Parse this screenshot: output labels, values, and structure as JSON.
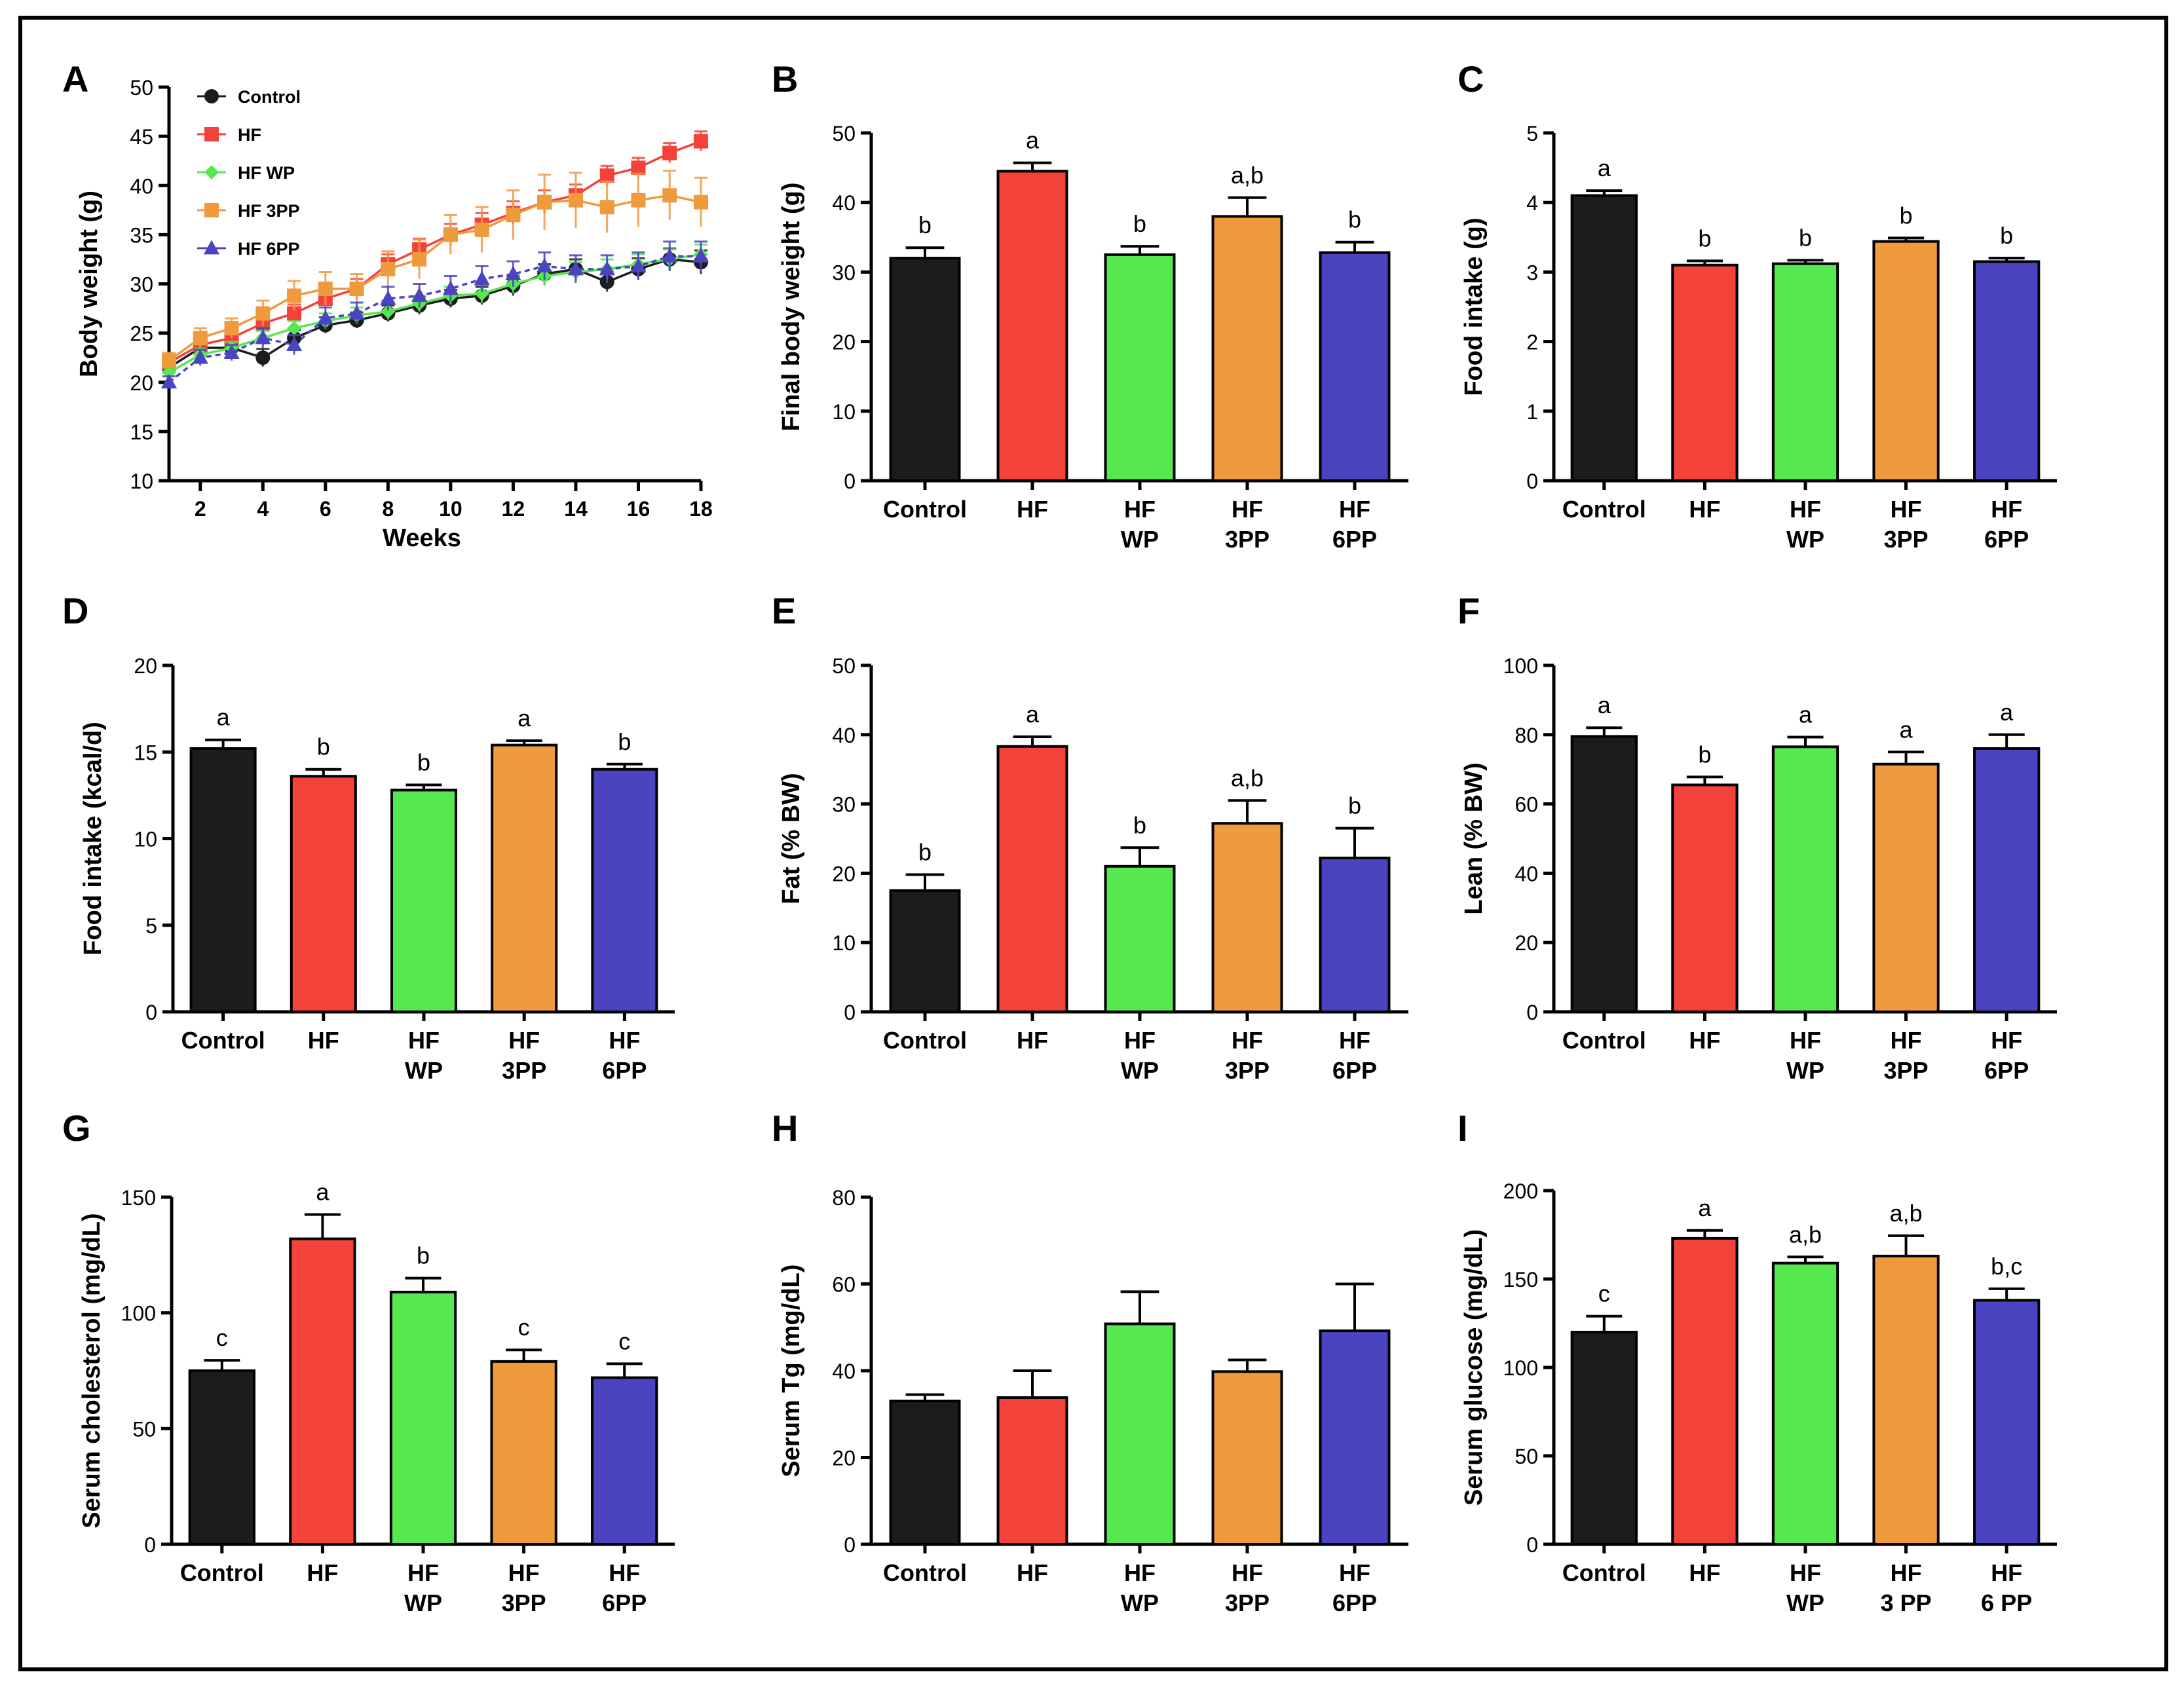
{
  "figure": {
    "colors": {
      "control": "#1c1c1c",
      "hf": "#f2423a",
      "hf_wp": "#55e84f",
      "hf_3pp": "#f09a3e",
      "hf_6pp": "#4a44c0"
    }
  },
  "chart_data": [
    {
      "panel": "A",
      "type": "line",
      "ylabel": "Body weight (g)",
      "xlabel": "Weeks",
      "xlim": [
        1,
        18
      ],
      "ylim": [
        10,
        50
      ],
      "xticks": [
        "2",
        "4",
        "6",
        "8",
        "10",
        "12",
        "14",
        "16",
        "18"
      ],
      "yticks": [
        "10",
        "15",
        "20",
        "25",
        "30",
        "35",
        "40",
        "45",
        "50"
      ],
      "legend_position": "top-left",
      "x": [
        1,
        2,
        3,
        4,
        5,
        6,
        7,
        8,
        9,
        10,
        11,
        12,
        13,
        14,
        15,
        16,
        17,
        18
      ],
      "series": [
        {
          "name": "Control",
          "color": "#1c1c1c",
          "marker": "circle",
          "values": [
            21.5,
            23.5,
            23.5,
            22.5,
            24.5,
            25.8,
            26.3,
            27.0,
            27.8,
            28.5,
            28.8,
            29.8,
            31.0,
            31.5,
            30.2,
            31.5,
            32.5,
            32.2
          ],
          "errors": [
            0.6,
            0.7,
            0.7,
            0.9,
            0.8,
            0.8,
            0.8,
            0.8,
            0.9,
            0.9,
            0.9,
            1.0,
            1.0,
            1.0,
            1.0,
            1.1,
            1.1,
            1.2
          ]
        },
        {
          "name": "HF",
          "color": "#f2423a",
          "marker": "square",
          "values": [
            22.0,
            23.8,
            24.5,
            26.0,
            27.0,
            28.5,
            29.5,
            32.0,
            33.5,
            35.0,
            36.0,
            37.2,
            38.3,
            39.0,
            41.0,
            41.8,
            43.3,
            44.5
          ],
          "errors": [
            0.6,
            0.7,
            0.7,
            0.9,
            0.9,
            1.0,
            1.0,
            1.0,
            1.1,
            1.1,
            1.2,
            1.2,
            1.2,
            1.1,
            1.0,
            1.0,
            1.0,
            1.0
          ]
        },
        {
          "name": "HF WP",
          "color": "#55e84f",
          "marker": "diamond",
          "values": [
            21.0,
            22.8,
            23.5,
            24.5,
            25.5,
            26.2,
            26.8,
            27.2,
            28.0,
            28.8,
            29.0,
            30.0,
            30.8,
            31.2,
            31.5,
            32.0,
            32.5,
            33.0
          ],
          "errors": [
            0.5,
            0.6,
            0.6,
            0.7,
            0.7,
            0.8,
            0.8,
            0.8,
            0.8,
            0.9,
            0.9,
            0.9,
            1.0,
            1.0,
            1.0,
            1.0,
            1.0,
            1.0
          ]
        },
        {
          "name": "HF 3PP",
          "color": "#f09a3e",
          "marker": "square",
          "values": [
            22.2,
            24.5,
            25.5,
            27.0,
            28.8,
            29.5,
            29.5,
            31.5,
            32.5,
            35.0,
            35.5,
            37.0,
            38.3,
            38.5,
            37.8,
            38.5,
            39.0,
            38.3
          ],
          "errors": [
            0.8,
            1.0,
            1.0,
            1.3,
            1.5,
            1.7,
            1.5,
            1.8,
            2.0,
            2.0,
            2.3,
            2.5,
            2.8,
            2.8,
            2.6,
            2.7,
            2.5,
            2.5
          ]
        },
        {
          "name": "HF 6PP",
          "color": "#4a44c0",
          "marker": "triangle",
          "values": [
            20.0,
            22.5,
            23.0,
            24.5,
            23.8,
            26.5,
            27.0,
            28.5,
            28.8,
            29.5,
            30.5,
            31.0,
            31.8,
            31.5,
            31.5,
            31.8,
            32.8,
            32.8
          ],
          "errors": [
            0.6,
            0.8,
            0.8,
            1.0,
            1.0,
            1.1,
            1.1,
            1.2,
            1.2,
            1.3,
            1.3,
            1.3,
            1.4,
            1.4,
            1.4,
            1.4,
            1.5,
            1.5
          ]
        }
      ]
    },
    {
      "panel": "B",
      "type": "bar",
      "ylabel": "Final body weight (g)",
      "ylim": [
        0,
        50
      ],
      "yticks": [
        "0",
        "10",
        "20",
        "30",
        "40",
        "50"
      ],
      "categories": [
        [
          "Control"
        ],
        [
          "HF"
        ],
        [
          "HF",
          "WP"
        ],
        [
          "HF",
          "3PP"
        ],
        [
          "HF",
          "6PP"
        ]
      ],
      "values": [
        32,
        44.5,
        32.5,
        38,
        32.8
      ],
      "errors": [
        1.5,
        1.2,
        1.2,
        2.7,
        1.5
      ],
      "sig": [
        "b",
        "a",
        "b",
        "a,b",
        "b"
      ]
    },
    {
      "panel": "C",
      "type": "bar",
      "ylabel": "Food intake (g)",
      "ylim": [
        0,
        5
      ],
      "yticks": [
        "0",
        "1",
        "2",
        "3",
        "4",
        "5"
      ],
      "categories": [
        [
          "Control"
        ],
        [
          "HF"
        ],
        [
          "HF",
          "WP"
        ],
        [
          "HF",
          "3PP"
        ],
        [
          "HF",
          "6PP"
        ]
      ],
      "values": [
        4.1,
        3.1,
        3.12,
        3.44,
        3.15
      ],
      "errors": [
        0.07,
        0.06,
        0.05,
        0.05,
        0.05
      ],
      "sig": [
        "a",
        "b",
        "b",
        "b",
        "b"
      ]
    },
    {
      "panel": "D",
      "type": "bar",
      "ylabel": "Food intake (kcal/d)",
      "ylim": [
        0,
        20
      ],
      "yticks": [
        "0",
        "5",
        "10",
        "15",
        "20"
      ],
      "categories": [
        [
          "Control"
        ],
        [
          "HF"
        ],
        [
          "HF",
          "WP"
        ],
        [
          "HF",
          "3PP"
        ],
        [
          "HF",
          "6PP"
        ]
      ],
      "values": [
        15.2,
        13.6,
        12.8,
        15.4,
        14.0
      ],
      "errors": [
        0.5,
        0.4,
        0.3,
        0.25,
        0.3
      ],
      "sig": [
        "a",
        "b",
        "b",
        "a",
        "b"
      ]
    },
    {
      "panel": "E",
      "type": "bar",
      "ylabel": "Fat (% BW)",
      "ylim": [
        0,
        50
      ],
      "yticks": [
        "0",
        "10",
        "20",
        "30",
        "40",
        "50"
      ],
      "categories": [
        [
          "Control"
        ],
        [
          "HF"
        ],
        [
          "HF",
          "WP"
        ],
        [
          "HF",
          "3PP"
        ],
        [
          "HF",
          "6PP"
        ]
      ],
      "values": [
        17.5,
        38.3,
        21,
        27.2,
        22.2
      ],
      "errors": [
        2.3,
        1.4,
        2.7,
        3.3,
        4.3
      ],
      "sig": [
        "b",
        "a",
        "b",
        "a,b",
        "b"
      ]
    },
    {
      "panel": "F",
      "type": "bar",
      "ylabel": "Lean (% BW)",
      "ylim": [
        0,
        100
      ],
      "yticks": [
        "0",
        "20",
        "40",
        "60",
        "80",
        "100"
      ],
      "categories": [
        [
          "Control"
        ],
        [
          "HF"
        ],
        [
          "HF",
          "WP"
        ],
        [
          "HF",
          "3PP"
        ],
        [
          "HF",
          "6PP"
        ]
      ],
      "values": [
        79.5,
        65.5,
        76.5,
        71.5,
        76
      ],
      "errors": [
        2.5,
        2.3,
        2.8,
        3.5,
        4.0
      ],
      "sig": [
        "a",
        "b",
        "a",
        "a",
        "a"
      ]
    },
    {
      "panel": "G",
      "type": "bar",
      "ylabel": "Serum cholesterol (mg/dL)",
      "ylim": [
        0,
        150
      ],
      "yticks": [
        "0",
        "50",
        "100",
        "150"
      ],
      "categories": [
        [
          "Control"
        ],
        [
          "HF"
        ],
        [
          "HF",
          "WP"
        ],
        [
          "HF",
          "3PP"
        ],
        [
          "HF",
          "6PP"
        ]
      ],
      "values": [
        75,
        132,
        109,
        79,
        72
      ],
      "errors": [
        4.5,
        10.5,
        6.0,
        5.0,
        6.0
      ],
      "sig": [
        "c",
        "a",
        "b",
        "c",
        "c"
      ]
    },
    {
      "panel": "H",
      "type": "bar",
      "ylabel": "Serum Tg (mg/dL)",
      "ylim": [
        0,
        80
      ],
      "yticks": [
        "0",
        "20",
        "40",
        "60",
        "80"
      ],
      "categories": [
        [
          "Control"
        ],
        [
          "HF"
        ],
        [
          "HF",
          "WP"
        ],
        [
          "HF",
          "3PP"
        ],
        [
          "HF",
          "6PP"
        ]
      ],
      "values": [
        33,
        33.8,
        50.8,
        39.8,
        49.2
      ],
      "errors": [
        1.5,
        6.2,
        7.4,
        2.7,
        10.8
      ],
      "sig": [
        "",
        "",
        "",
        "",
        ""
      ]
    },
    {
      "panel": "I",
      "type": "bar",
      "ylabel": "Serum glucose (mg/dL)",
      "ylim": [
        0,
        200
      ],
      "yticks": [
        "0",
        "50",
        "100",
        "150",
        "200"
      ],
      "categories": [
        [
          "Control"
        ],
        [
          "HF"
        ],
        [
          "HF",
          "WP"
        ],
        [
          "HF",
          "3 PP"
        ],
        [
          "HF",
          "6 PP"
        ]
      ],
      "values": [
        120,
        173,
        159,
        163,
        138
      ],
      "errors": [
        9,
        4.5,
        3.5,
        11.5,
        6.5
      ],
      "sig": [
        "c",
        "a",
        "a,b",
        "a,b",
        "b,c"
      ]
    }
  ]
}
